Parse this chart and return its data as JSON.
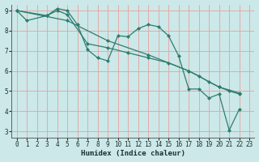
{
  "xlabel": "Humidex (Indice chaleur)",
  "bg_color": "#cce8e8",
  "grid_color": "#e8a0a0",
  "line_color": "#2d7d6e",
  "xlim": [
    -0.5,
    23.5
  ],
  "ylim": [
    2.7,
    9.3
  ],
  "yticks": [
    3,
    4,
    5,
    6,
    7,
    8,
    9
  ],
  "xticks": [
    0,
    1,
    2,
    3,
    4,
    5,
    6,
    7,
    8,
    9,
    10,
    11,
    12,
    13,
    14,
    15,
    16,
    17,
    18,
    19,
    20,
    21,
    22,
    23
  ],
  "line1_x": [
    0,
    1,
    3,
    4,
    5,
    6,
    7,
    8,
    9,
    10,
    11,
    12,
    13,
    14,
    15,
    16,
    17,
    18,
    19,
    20,
    21,
    22
  ],
  "line1_y": [
    9.0,
    8.5,
    8.75,
    9.1,
    9.0,
    8.3,
    7.05,
    6.65,
    6.5,
    7.75,
    7.7,
    8.1,
    8.3,
    8.2,
    7.75,
    6.75,
    5.1,
    5.1,
    4.65,
    4.85,
    3.05,
    4.1
  ],
  "line2_x": [
    0,
    3,
    4,
    5,
    7,
    9,
    11,
    13,
    15,
    17,
    18,
    19,
    20,
    21,
    22
  ],
  "line2_y": [
    9.0,
    8.75,
    9.0,
    8.8,
    7.35,
    7.15,
    6.9,
    6.65,
    6.4,
    6.0,
    5.75,
    5.45,
    5.2,
    5.0,
    4.85
  ],
  "line3_x": [
    0,
    5,
    9,
    13,
    17,
    20,
    22
  ],
  "line3_y": [
    9.0,
    8.5,
    7.5,
    6.8,
    6.0,
    5.2,
    4.9
  ]
}
